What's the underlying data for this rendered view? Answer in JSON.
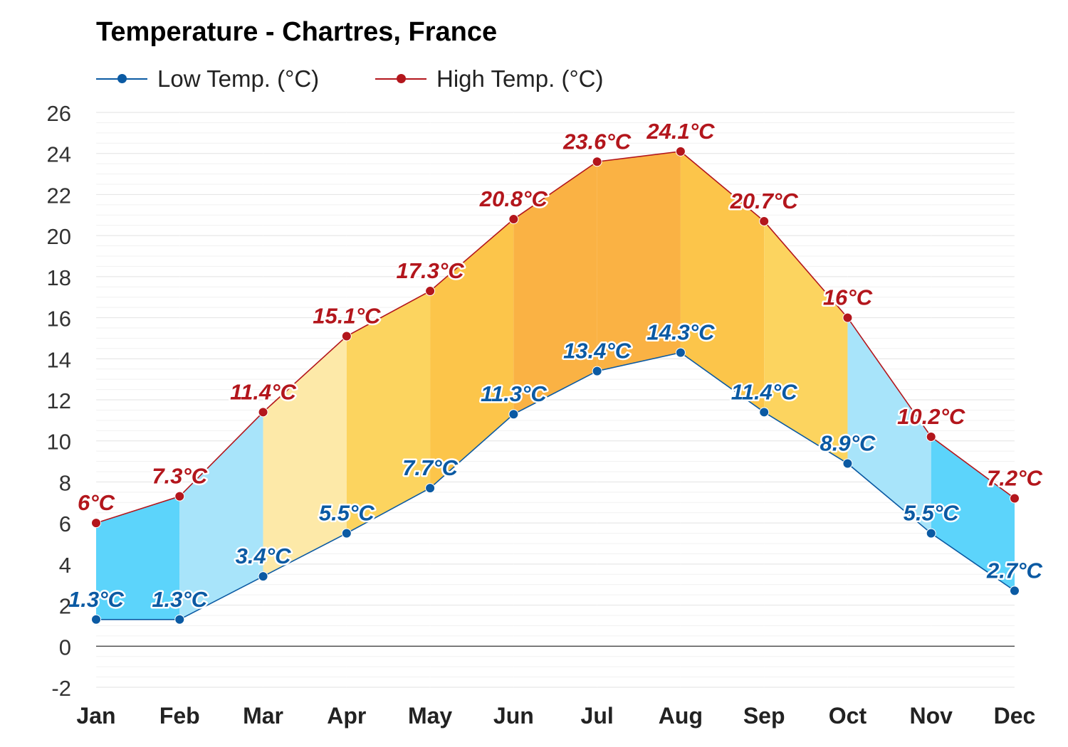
{
  "title": "Temperature - Chartres, France",
  "legend": {
    "low_label": "Low Temp. (°C)",
    "high_label": "High Temp. (°C)"
  },
  "colors": {
    "low": "#0b5aa3",
    "high": "#b3161c",
    "cold_fill_light": "#a8e4fa",
    "cold_fill": "#5cd4fb",
    "warm_fill_pale": "#fde9a8",
    "warm_fill": "#fcd45f",
    "warm_fill_mid": "#fcc54a",
    "hot_fill": "#fab244",
    "grid": "#e6e6e6",
    "zero_line": "#000000"
  },
  "chart_data": {
    "type": "line",
    "title": "Temperature - Chartres, France",
    "categories": [
      "Jan",
      "Feb",
      "Mar",
      "Apr",
      "May",
      "Jun",
      "Jul",
      "Aug",
      "Sep",
      "Oct",
      "Nov",
      "Dec"
    ],
    "series": [
      {
        "name": "Low Temp. (°C)",
        "values": [
          1.3,
          1.3,
          3.4,
          5.5,
          7.7,
          11.3,
          13.4,
          14.3,
          11.4,
          8.9,
          5.5,
          2.7
        ],
        "labels": [
          "1.3°C",
          "1.3°C",
          "3.4°C",
          "5.5°C",
          "7.7°C",
          "11.3°C",
          "13.4°C",
          "14.3°C",
          "11.4°C",
          "8.9°C",
          "5.5°C",
          "2.7°C"
        ]
      },
      {
        "name": "High Temp. (°C)",
        "values": [
          6,
          7.3,
          11.4,
          15.1,
          17.3,
          20.8,
          23.6,
          24.1,
          20.7,
          16,
          10.2,
          7.2
        ],
        "labels": [
          "6°C",
          "7.3°C",
          "11.4°C",
          "15.1°C",
          "17.3°C",
          "20.8°C",
          "23.6°C",
          "24.1°C",
          "20.7°C",
          "16°C",
          "10.2°C",
          "7.2°C"
        ]
      }
    ],
    "band_fills": [
      "cold_fill",
      "cold_fill_light",
      "warm_fill_pale",
      "warm_fill",
      "warm_fill_mid",
      "hot_fill",
      "hot_fill",
      "warm_fill_mid",
      "warm_fill",
      "cold_fill_light",
      "cold_fill"
    ],
    "ylim": [
      -2,
      26
    ],
    "yticks": [
      "-2",
      "0",
      "2",
      "4",
      "6",
      "8",
      "10",
      "12",
      "14",
      "16",
      "18",
      "20",
      "22",
      "24",
      "26"
    ],
    "grid": true,
    "legend_position": "top-left"
  }
}
